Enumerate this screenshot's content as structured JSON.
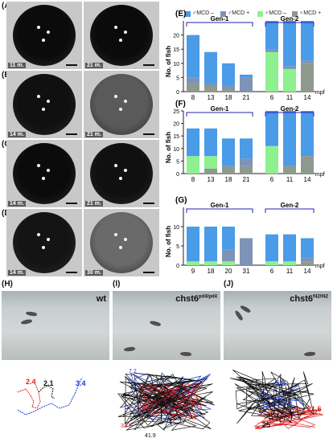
{
  "panels": {
    "A": "(A)",
    "B": "(B)",
    "C": "(C)",
    "D": "(D)",
    "E": "(E)",
    "F": "(F)",
    "G": "(G)",
    "H": "(H)",
    "I": "(I)",
    "J": "(J)"
  },
  "eye_labels": {
    "A1": "11 m.",
    "A2": "21 m.",
    "B1": "14 m.",
    "B2": "21 m.",
    "C1": "14 m.",
    "C2": "21 m.",
    "D1": "14 m.",
    "D2": "30 m."
  },
  "legend": {
    "male_minus": "♂MCD –",
    "male_plus": "♂MCD +",
    "female_minus": "♀MCD –",
    "female_plus": "♀MCD +"
  },
  "colors": {
    "male_minus": "#4a9be8",
    "male_plus": "#7d93b8",
    "female_minus": "#8ef08e",
    "female_plus": "#8d9a8d",
    "gen_bracket": "#2222bb"
  },
  "axis": {
    "ylabel": "No. of fish",
    "xunit": "mpf",
    "gen1": "Gen-1",
    "gen2": "Gen-2"
  },
  "tanks": {
    "H": {
      "title": "wt",
      "sup": ""
    },
    "I": {
      "title": "chst6",
      "sup": "pd4/pd4"
    },
    "J": {
      "title": "chst6",
      "sup": "f42/f42"
    }
  },
  "traj_labels": {
    "H": [
      "2.4",
      "2.1",
      "3.4"
    ],
    "I": [
      "7.2",
      "33.3",
      "41.9"
    ],
    "J": [
      "5.8",
      "25",
      "21.6"
    ]
  },
  "chart_data": [
    {
      "type": "bar",
      "panel": "E",
      "categories": [
        "8",
        "13",
        "18",
        "21",
        "6",
        "11",
        "14"
      ],
      "groups": [
        "Gen-1",
        "Gen-1",
        "Gen-1",
        "Gen-1",
        "Gen-2",
        "Gen-2",
        "Gen-2"
      ],
      "ylim": [
        0,
        25
      ],
      "yticks": [
        0,
        5,
        10,
        15,
        20
      ],
      "stacked": true,
      "series": [
        {
          "name": "♀MCD +",
          "values": [
            3,
            2,
            1,
            0,
            0,
            0,
            10
          ]
        },
        {
          "name": "♀MCD –",
          "values": [
            0,
            0,
            0,
            0,
            14,
            8,
            0
          ]
        },
        {
          "name": "♂MCD +",
          "values": [
            2,
            1,
            1,
            5,
            1,
            1,
            1
          ]
        },
        {
          "name": "♂MCD –",
          "values": [
            15,
            11,
            8,
            1,
            10,
            16,
            14
          ]
        }
      ]
    },
    {
      "type": "bar",
      "panel": "F",
      "categories": [
        "8",
        "13",
        "18",
        "21",
        "6",
        "11",
        "14"
      ],
      "groups": [
        "Gen-1",
        "Gen-1",
        "Gen-1",
        "Gen-1",
        "Gen-2",
        "Gen-2",
        "Gen-2"
      ],
      "ylim": [
        0,
        25
      ],
      "yticks": [
        0,
        5,
        10,
        15,
        20,
        25
      ],
      "stacked": true,
      "series": [
        {
          "name": "♀MCD +",
          "values": [
            0,
            2,
            3,
            3,
            0,
            3,
            7
          ]
        },
        {
          "name": "♀MCD –",
          "values": [
            7,
            5,
            0,
            0,
            11,
            0,
            0
          ]
        },
        {
          "name": "♂MCD +",
          "values": [
            0,
            0,
            0,
            3,
            0,
            0,
            0
          ]
        },
        {
          "name": "♂MCD –",
          "values": [
            11,
            11,
            11,
            8,
            14,
            22,
            18
          ]
        }
      ]
    },
    {
      "type": "bar",
      "panel": "G",
      "categories": [
        "9",
        "18",
        "20",
        "31",
        "6",
        "11",
        "14"
      ],
      "groups": [
        "Gen-1",
        "Gen-1",
        "Gen-1",
        "Gen-1",
        "Gen-2",
        "Gen-2",
        "Gen-2"
      ],
      "ylim": [
        0,
        15
      ],
      "yticks": [
        0,
        5,
        10
      ],
      "stacked": true,
      "series": [
        {
          "name": "♀MCD +",
          "values": [
            0,
            0,
            0,
            0,
            0,
            0,
            1
          ]
        },
        {
          "name": "♀MCD –",
          "values": [
            1,
            1,
            1,
            0,
            1,
            1,
            0
          ]
        },
        {
          "name": "♂MCD +",
          "values": [
            0,
            0,
            3,
            7,
            0,
            0,
            1
          ]
        },
        {
          "name": "♂MCD –",
          "values": [
            9,
            9,
            6,
            0,
            7,
            7,
            5
          ]
        }
      ]
    }
  ]
}
